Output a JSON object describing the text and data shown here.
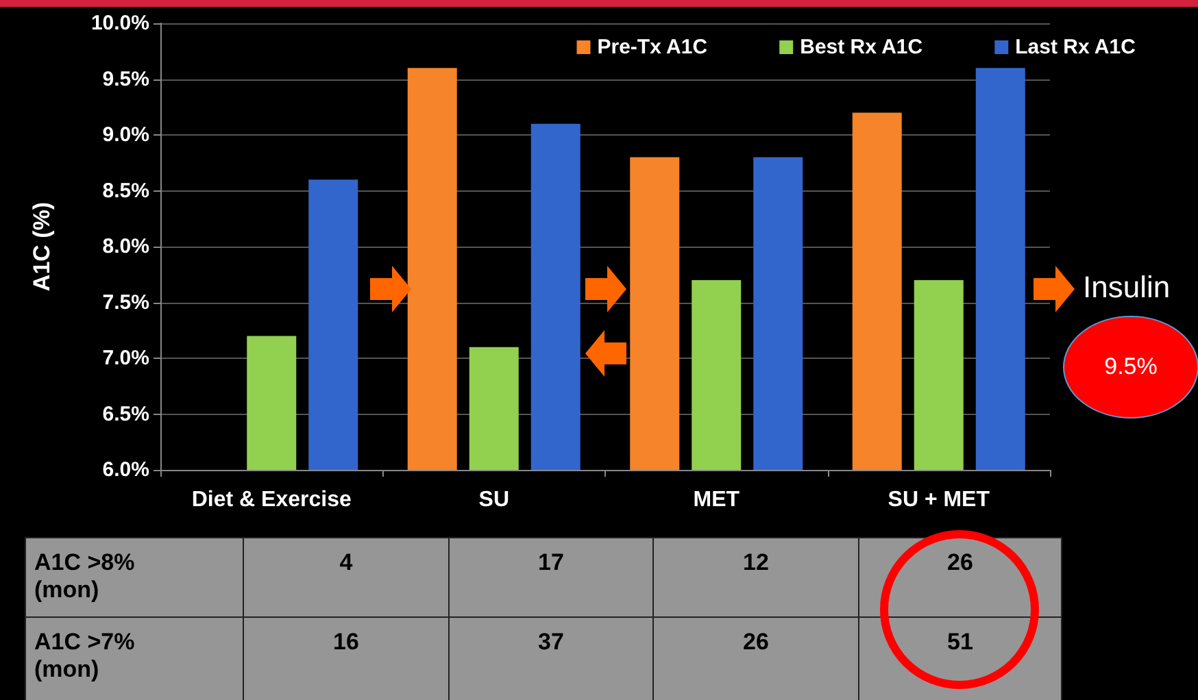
{
  "chart_data": {
    "type": "bar",
    "ylabel": "A1C (%)",
    "categories": [
      "Diet & Exercise",
      "SU",
      "MET",
      "SU + MET"
    ],
    "series": [
      {
        "name": "Pre-Tx A1C",
        "color": "#f5842a",
        "values": [
          null,
          9.6,
          8.8,
          9.2
        ]
      },
      {
        "name": "Best Rx A1C",
        "color": "#92d050",
        "values": [
          7.2,
          7.1,
          7.7,
          7.7
        ]
      },
      {
        "name": "Last Rx A1C",
        "color": "#3366cc",
        "values": [
          8.6,
          9.1,
          8.8,
          9.6
        ]
      }
    ],
    "ylim": [
      6,
      10
    ],
    "yticks": [
      {
        "value": 6,
        "label": "6.0%"
      },
      {
        "value": 6.5,
        "label": "6.5%"
      },
      {
        "value": 7,
        "label": "7.0%"
      },
      {
        "value": 7.5,
        "label": "7.5%"
      },
      {
        "value": 8,
        "label": "8.0%"
      },
      {
        "value": 8.5,
        "label": "8.5%"
      },
      {
        "value": 9,
        "label": "9.0%"
      },
      {
        "value": 9.5,
        "label": "9.5%"
      },
      {
        "value": 10,
        "label": "10.0%"
      }
    ],
    "grid": "y",
    "legend": "top right",
    "annotations": [
      "A1C >8% (mon)",
      "4",
      "17",
      "12",
      "26",
      "A1C >7% (mon)",
      "16",
      "37",
      "26",
      "51",
      "Insulin",
      "9.5%"
    ]
  }
}
